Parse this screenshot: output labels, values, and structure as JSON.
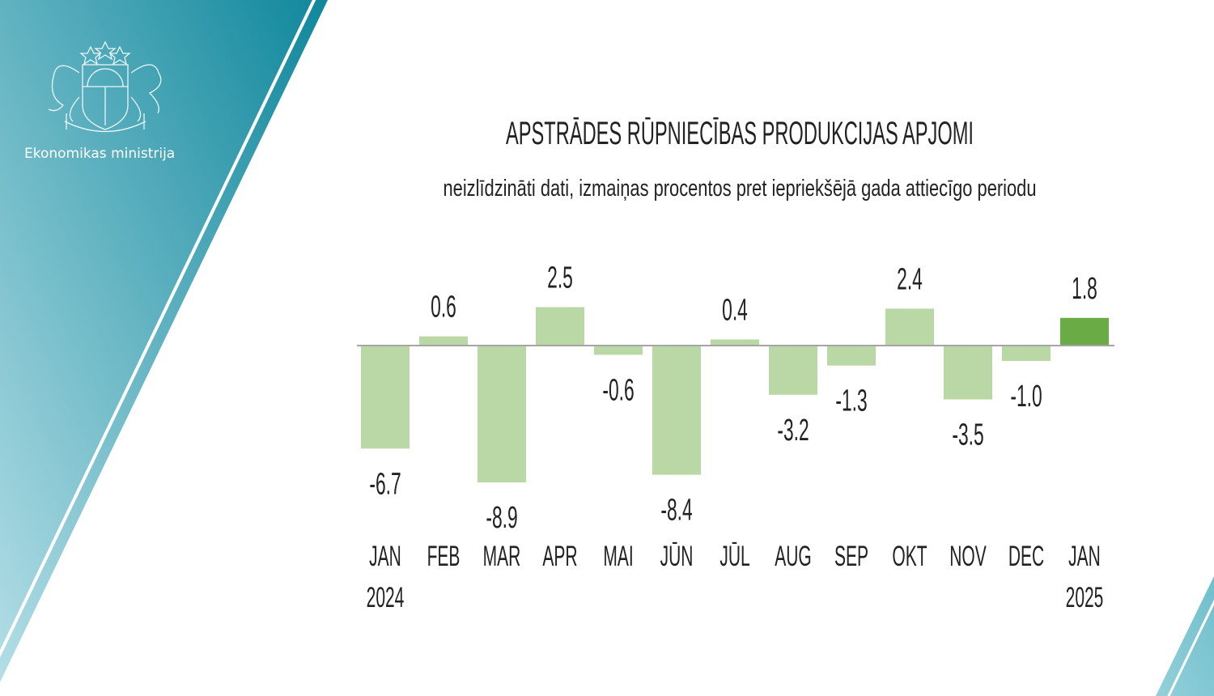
{
  "brand": {
    "name": "Ekonomikas ministrija",
    "logo": "latvia-coat-of-arms"
  },
  "colors": {
    "bar": "#b9d8a6",
    "bar_highlight": "#6aab45",
    "teal_dark": "#118a9e",
    "teal_light": "#a9d9e1"
  },
  "chart_data": {
    "type": "bar",
    "title": "APSTRĀDES RŪPNIECĪBAS PRODUKCIJAS APJOMI",
    "subtitle": "neizlīdzināti dati, izmaiņas procentos pret iepriekšējā gada attiecīgo periodu",
    "categories": [
      "JAN",
      "FEB",
      "MAR",
      "APR",
      "MAI",
      "JŪN",
      "JŪL",
      "AUG",
      "SEP",
      "OKT",
      "NOV",
      "DEC",
      "JAN"
    ],
    "years": [
      "2024",
      "",
      "",
      "",
      "",
      "",
      "",
      "",
      "",
      "",
      "",
      "",
      "2025"
    ],
    "values": [
      -6.7,
      0.6,
      -8.9,
      2.5,
      -0.6,
      -8.4,
      0.4,
      -3.2,
      -1.3,
      2.4,
      -3.5,
      -1.0,
      1.8
    ],
    "labels": [
      "-6.7",
      "0.6",
      "-8.9",
      "2.5",
      "-0.6",
      "-8.4",
      "0.4",
      "-3.2",
      "-1.3",
      "2.4",
      "-3.5",
      "-1.0",
      "1.8"
    ],
    "highlight_index": 12,
    "xlabel": "",
    "ylabel": "",
    "grid": false,
    "legend": "none"
  }
}
